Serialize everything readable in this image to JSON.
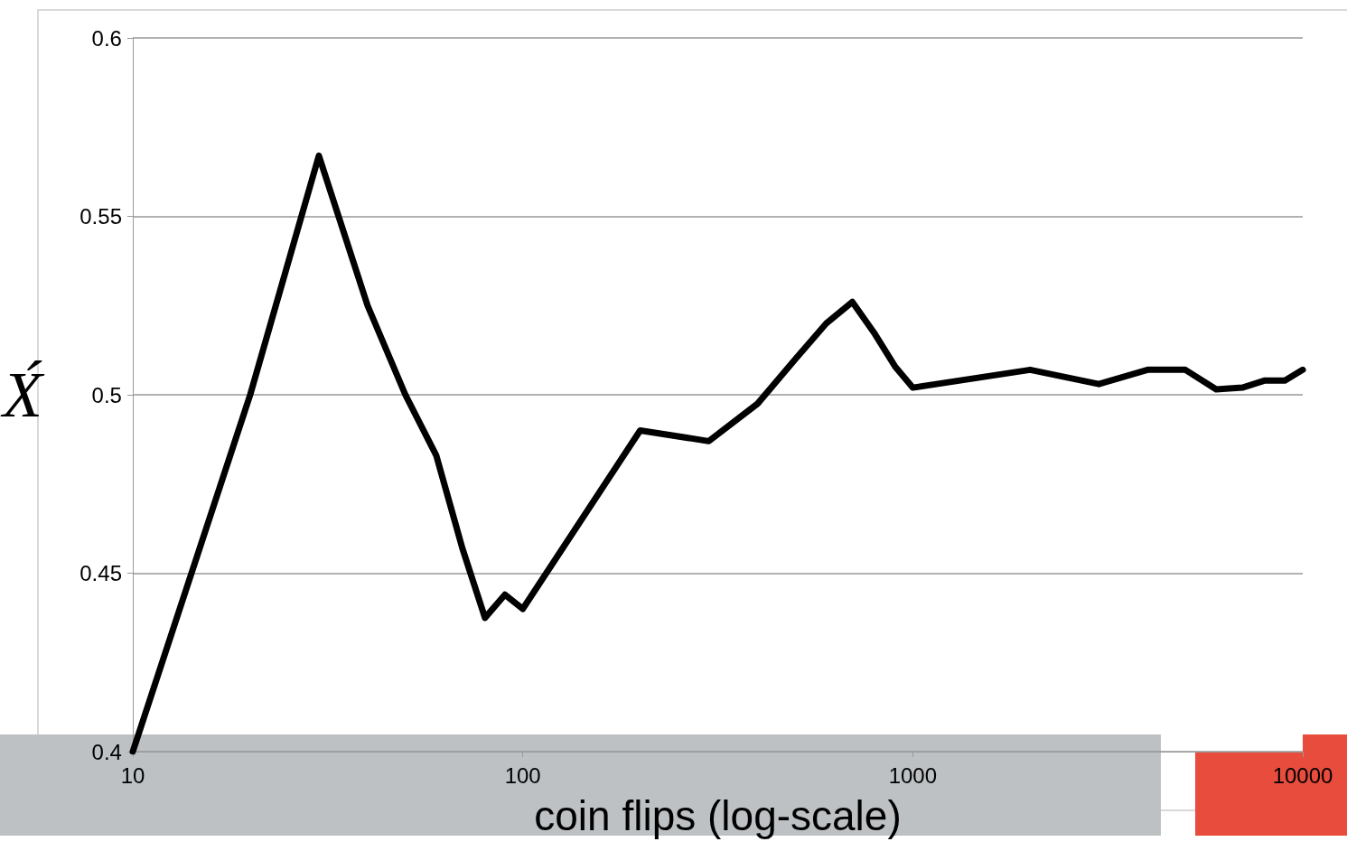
{
  "chart_data": {
    "type": "line",
    "xlabel": "coin flips (log-scale)",
    "ylabel": "X́",
    "x": [
      10,
      20,
      30,
      40,
      50,
      60,
      70,
      80,
      90,
      100,
      200,
      300,
      400,
      500,
      600,
      700,
      800,
      900,
      1000,
      2000,
      3000,
      4000,
      5000,
      6000,
      7000,
      8000,
      9000,
      10000
    ],
    "series": [
      {
        "color": "#000000",
        "values": [
          0.4,
          0.5,
          0.567,
          0.525,
          0.5,
          0.483,
          0.457,
          0.4375,
          0.444,
          0.44,
          0.49,
          0.487,
          0.4975,
          0.51,
          0.52,
          0.526,
          0.517,
          0.508,
          0.502,
          0.507,
          0.503,
          0.507,
          0.507,
          0.5015,
          0.502,
          0.504,
          0.504,
          0.507
        ]
      }
    ],
    "log": "x",
    "xlim": [
      10,
      10000
    ],
    "xticks": [
      10,
      100,
      1000,
      10000
    ],
    "ylim": [
      0.4,
      0.6
    ],
    "yticks": [
      0.4,
      0.45,
      0.5,
      0.55,
      0.6
    ],
    "grid": "y",
    "marker": "none",
    "line_style": "solid"
  }
}
